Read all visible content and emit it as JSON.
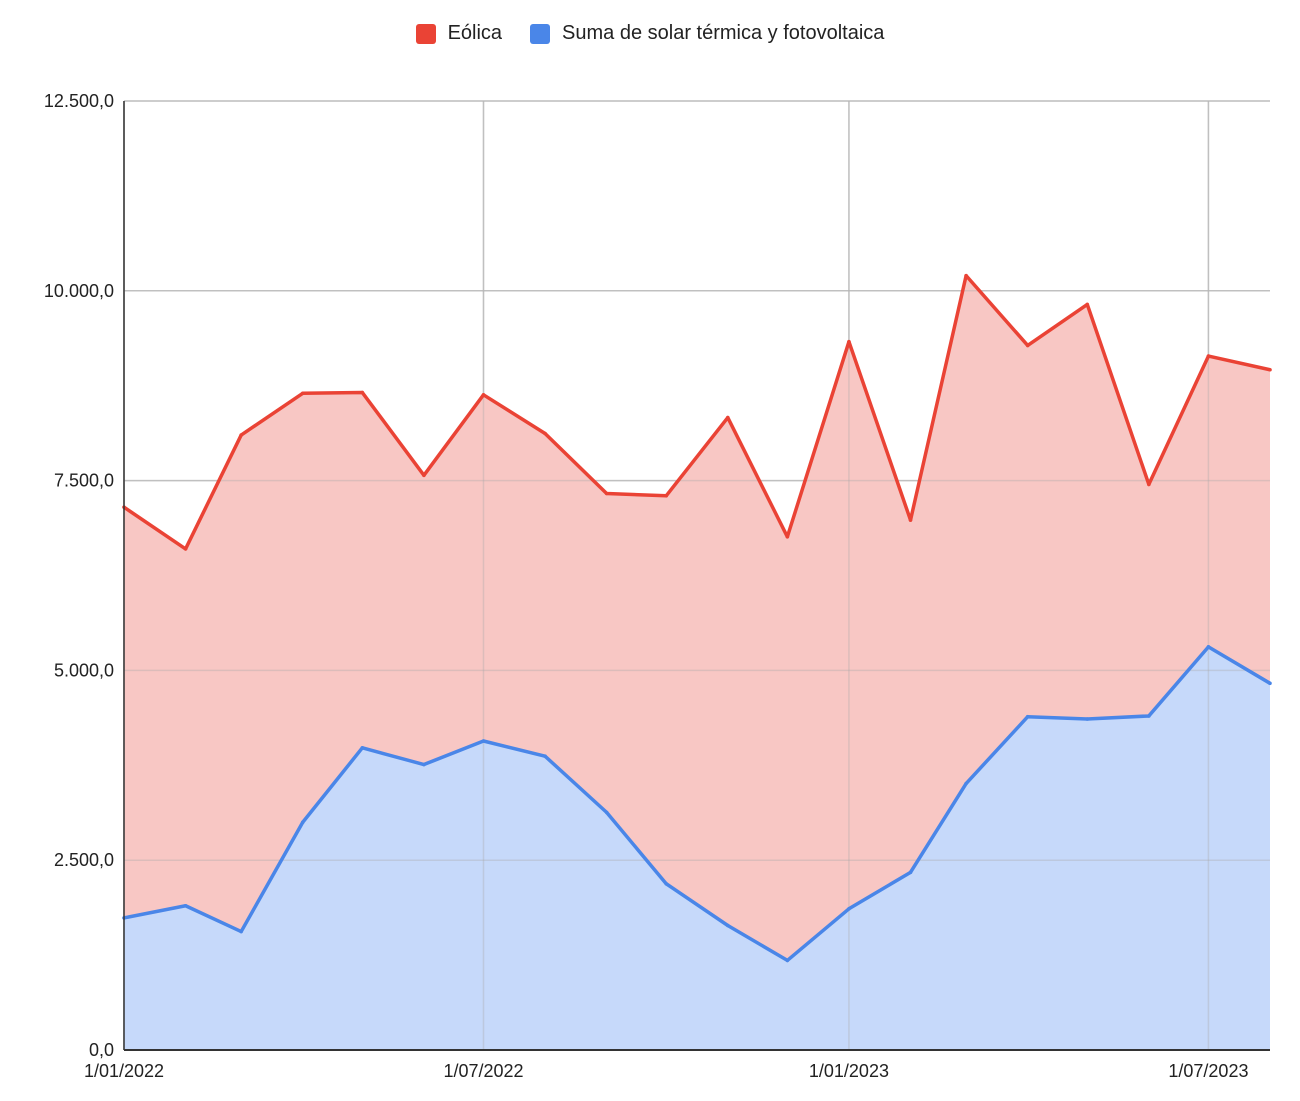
{
  "chart_data": {
    "type": "area",
    "x_labels": [
      "1/01/2022",
      "1/07/2022",
      "1/01/2023",
      "1/07/2023"
    ],
    "y_ticks": [
      "0,0",
      "2.500,0",
      "5.000,0",
      "7.500,0",
      "10.000,0",
      "12.500,0"
    ],
    "ylim": [
      0,
      12500
    ],
    "x": [
      "2022-01-01",
      "2022-02-01",
      "2022-03-01",
      "2022-04-01",
      "2022-05-01",
      "2022-06-01",
      "2022-07-01",
      "2022-08-01",
      "2022-09-01",
      "2022-10-01",
      "2022-11-01",
      "2022-12-01",
      "2023-01-01",
      "2023-02-01",
      "2023-03-01",
      "2023-04-01",
      "2023-05-01",
      "2023-06-01",
      "2023-07-01",
      "2023-08-01"
    ],
    "grid": true,
    "legend": "top",
    "series": [
      {
        "name": "Eólica",
        "color": "#ea4335",
        "fill": "#f8c6c3",
        "values": [
          7150,
          6600,
          8100,
          8650,
          8660,
          7570,
          8630,
          8120,
          7330,
          7300,
          8330,
          6760,
          9330,
          6980,
          10200,
          9280,
          9820,
          7450,
          9140,
          8960
        ]
      },
      {
        "name": "Suma de solar térmica y fotovoltaica",
        "color": "#4a86e8",
        "fill": "#c5d9fb",
        "values": [
          1740,
          1900,
          1560,
          3000,
          3980,
          3760,
          4070,
          3870,
          3130,
          2190,
          1640,
          1180,
          1860,
          2340,
          3510,
          4390,
          4360,
          4400,
          5310,
          4830
        ]
      }
    ]
  }
}
